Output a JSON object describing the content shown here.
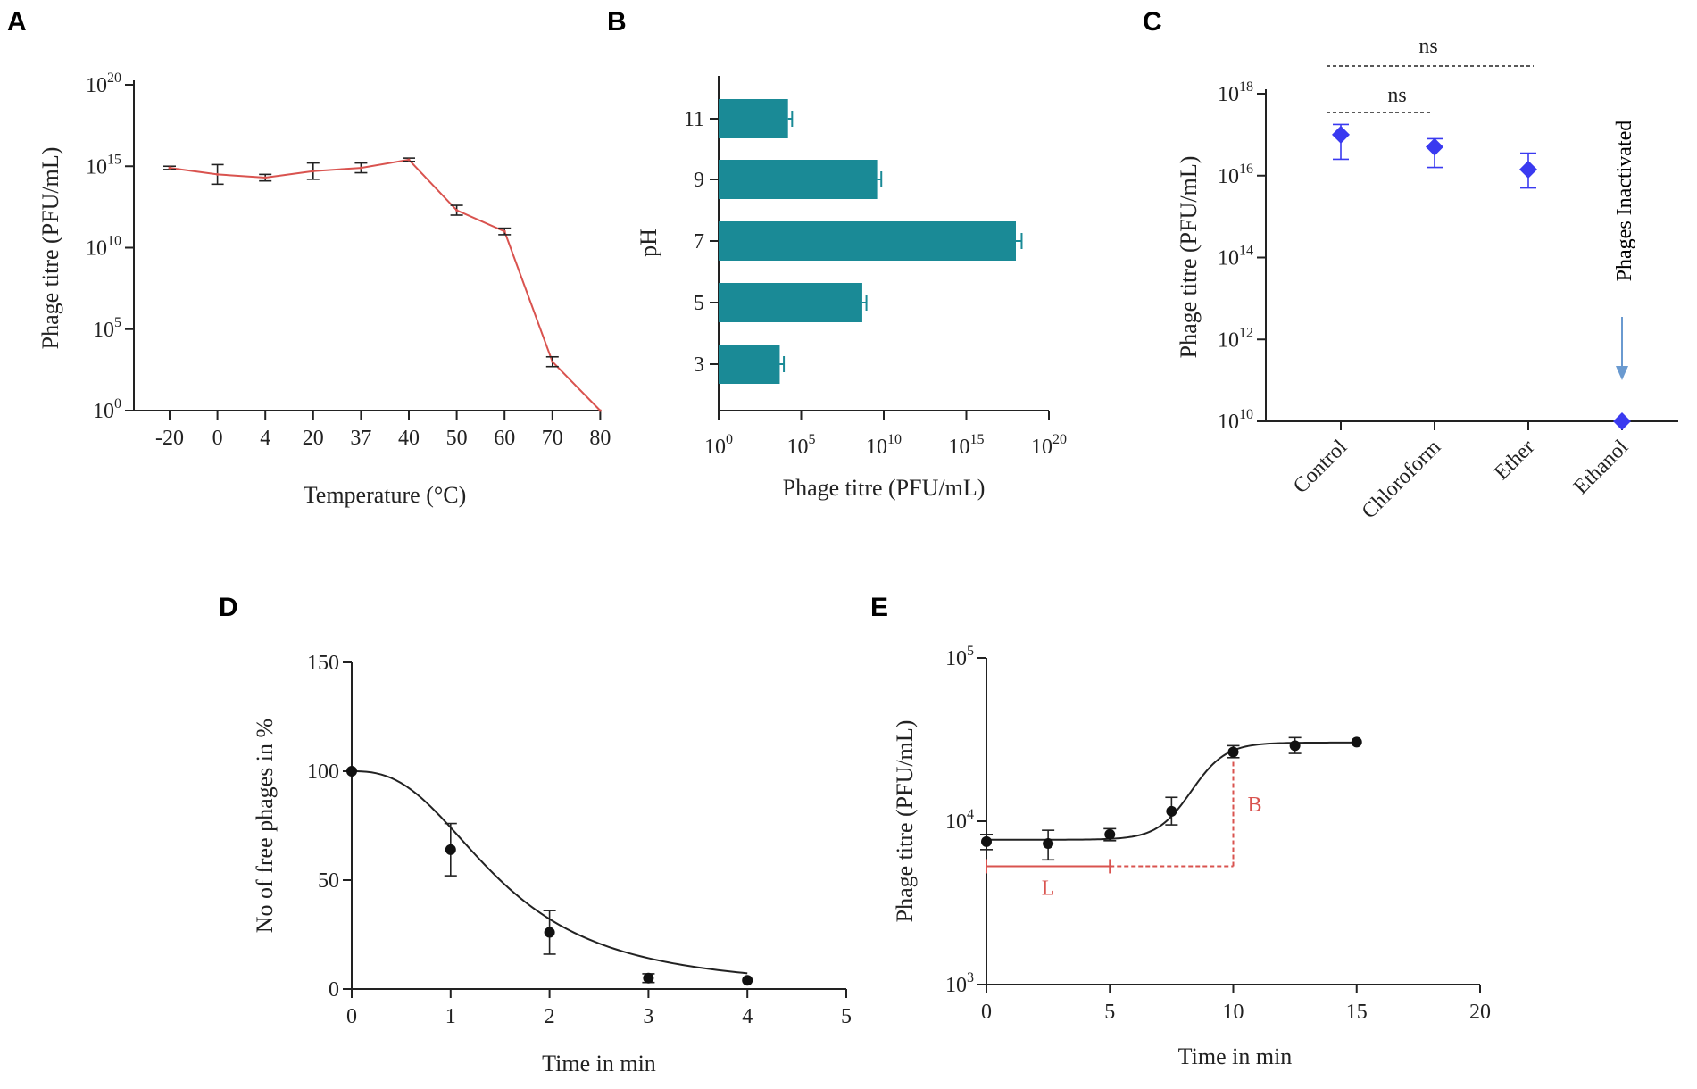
{
  "figure": {
    "panels": [
      "A",
      "B",
      "C",
      "D",
      "E"
    ]
  },
  "chart_data": [
    {
      "panel": "A",
      "type": "line",
      "title": "",
      "xlabel": "Temperature (°C)",
      "ylabel": "Phage titre (PFU/mL)",
      "yscale": "log10",
      "ylim_exp": [
        0,
        20
      ],
      "ytick_exps": [
        0,
        5,
        10,
        15,
        20
      ],
      "categories": [
        "-20",
        "0",
        "4",
        "20",
        "37",
        "40",
        "50",
        "60",
        "70",
        "80"
      ],
      "log10_values": [
        14.9,
        14.5,
        14.3,
        14.7,
        14.9,
        15.4,
        12.3,
        11.0,
        3.0,
        0.0
      ],
      "log10_errors": [
        0.1,
        0.6,
        0.2,
        0.5,
        0.3,
        0.1,
        0.3,
        0.2,
        0.3,
        0
      ],
      "line_color": "#d9534f"
    },
    {
      "panel": "B",
      "type": "bar",
      "orientation": "horizontal",
      "title": "",
      "xlabel": "Phage titre (PFU/mL)",
      "ylabel": "pH",
      "xscale": "log10",
      "xlim_exp": [
        0,
        20
      ],
      "xtick_exps": [
        0,
        5,
        10,
        15,
        20
      ],
      "categories": [
        "3",
        "5",
        "7",
        "9",
        "11"
      ],
      "log10_values": [
        3.7,
        8.7,
        18.0,
        9.6,
        4.2
      ],
      "log10_errors": [
        0.25,
        0.25,
        0.35,
        0.25,
        0.25
      ],
      "bar_color": "#1a8a96"
    },
    {
      "panel": "C",
      "type": "scatter",
      "title": "",
      "xlabel": "",
      "ylabel": "Phage titre (PFU/mL)",
      "yscale": "log10",
      "ylim_exp": [
        10,
        18
      ],
      "ytick_exps": [
        10,
        12,
        14,
        16,
        18
      ],
      "categories": [
        "Control",
        "Chloroform",
        "Ether",
        "Ethanol"
      ],
      "log10_values": [
        17.0,
        16.7,
        16.15,
        10.0
      ],
      "log10_err_upper": [
        0.25,
        0.2,
        0.4,
        0
      ],
      "log10_err_lower": [
        0.6,
        0.5,
        0.45,
        0
      ],
      "marker_color": "#3a3af0",
      "annotations": {
        "sig_short": "ns",
        "sig_long": "ns",
        "inactivated": "Phages Inactivated"
      }
    },
    {
      "panel": "D",
      "type": "scatter",
      "title": "",
      "xlabel": "Time in min",
      "ylabel": "No of free phages in %",
      "xlim": [
        0,
        5
      ],
      "ylim": [
        0,
        150
      ],
      "xticks": [
        0,
        1,
        2,
        3,
        4,
        5
      ],
      "yticks": [
        0,
        50,
        100,
        150
      ],
      "x": [
        0,
        1,
        2,
        3,
        4
      ],
      "y": [
        100,
        64,
        26,
        5,
        4
      ],
      "errors": [
        0,
        12,
        10,
        2,
        0
      ],
      "fit": "sigmoidal decay"
    },
    {
      "panel": "E",
      "type": "scatter",
      "title": "",
      "xlabel": "Time in min",
      "ylabel": "Phage titre (PFU/mL)",
      "yscale": "log10",
      "xlim": [
        0,
        20
      ],
      "ylim_exp": [
        3,
        5
      ],
      "xticks": [
        0,
        5,
        10,
        15,
        20
      ],
      "ytick_exps": [
        3,
        4,
        5
      ],
      "x": [
        0,
        2.5,
        5,
        7.5,
        10,
        12.5,
        15
      ],
      "y": [
        7500,
        7300,
        8300,
        11500,
        26500,
        29000,
        30500
      ],
      "errors_upper": [
        800,
        1500,
        700,
        2500,
        2500,
        3500,
        0
      ],
      "errors_lower": [
        800,
        1500,
        700,
        2000,
        2000,
        3000,
        0
      ],
      "fit": "sigmoidal growth",
      "annotations": {
        "latent_label": "L",
        "burst_label": "B",
        "latent_end_min": 5,
        "burst_min": 10,
        "marker_titre": 5300,
        "color": "#d9534f"
      }
    }
  ]
}
